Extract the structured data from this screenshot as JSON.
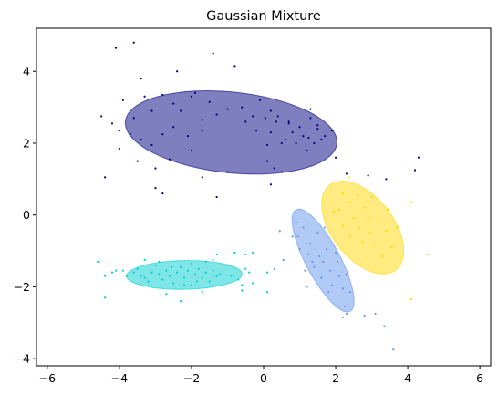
{
  "chart_data": {
    "type": "scatter",
    "title": "Gaussian Mixture",
    "xlabel": "",
    "ylabel": "",
    "xlim": [
      -6.3,
      6.3
    ],
    "ylim": [
      -4.2,
      5.2
    ],
    "xticks": [
      -6,
      -4,
      -2,
      0,
      2,
      4,
      6
    ],
    "yticks": [
      -4,
      -2,
      0,
      2,
      4
    ],
    "grid": false,
    "series": [
      {
        "color": "#000080",
        "ellipse": {
          "center": [
            -0.9,
            2.3
          ],
          "width": 5.9,
          "height": 2.25,
          "angle_deg": -6,
          "alpha": 0.5
        },
        "points": [
          [
            -4.1,
            4.65
          ],
          [
            -3.6,
            4.8
          ],
          [
            -1.4,
            4.5
          ],
          [
            -0.8,
            4.15
          ],
          [
            -3.4,
            3.8
          ],
          [
            -2.4,
            4.0
          ],
          [
            -3.9,
            3.2
          ],
          [
            -3.1,
            2.9
          ],
          [
            -3.3,
            3.3
          ],
          [
            -2.8,
            3.35
          ],
          [
            -2.5,
            3.1
          ],
          [
            -2.0,
            3.3
          ],
          [
            -1.9,
            3.4
          ],
          [
            -1.5,
            3.15
          ],
          [
            -1.3,
            2.8
          ],
          [
            -1.0,
            2.95
          ],
          [
            -0.6,
            3.0
          ],
          [
            -0.3,
            2.75
          ],
          [
            -4.5,
            2.75
          ],
          [
            -4.2,
            2.55
          ],
          [
            -4.0,
            2.35
          ],
          [
            -3.7,
            2.25
          ],
          [
            -3.4,
            2.1
          ],
          [
            -3.1,
            1.95
          ],
          [
            -2.8,
            2.25
          ],
          [
            -2.5,
            2.45
          ],
          [
            -2.1,
            2.2
          ],
          [
            -1.7,
            2.35
          ],
          [
            -4.0,
            1.85
          ],
          [
            -3.5,
            1.5
          ],
          [
            -3.0,
            1.3
          ],
          [
            -2.6,
            1.55
          ],
          [
            -1.7,
            1.05
          ],
          [
            -4.4,
            1.05
          ],
          [
            -3.0,
            0.75
          ],
          [
            -2.8,
            0.6
          ],
          [
            -1.3,
            0.5
          ],
          [
            -1.0,
            1.2
          ],
          [
            -0.1,
            3.2
          ],
          [
            0.2,
            2.9
          ],
          [
            0.4,
            2.75
          ],
          [
            0.7,
            2.6
          ],
          [
            1.0,
            2.45
          ],
          [
            1.3,
            2.7
          ],
          [
            1.5,
            2.5
          ],
          [
            1.7,
            2.2
          ],
          [
            1.4,
            2.0
          ],
          [
            1.1,
            2.2
          ],
          [
            0.8,
            2.3
          ],
          [
            0.5,
            2.0
          ],
          [
            0.2,
            2.3
          ],
          [
            0.1,
            1.95
          ],
          [
            0.6,
            2.1
          ],
          [
            0.9,
            2.0
          ],
          [
            1.2,
            1.8
          ],
          [
            1.6,
            2.1
          ],
          [
            1.9,
            2.35
          ],
          [
            0.3,
            1.3
          ],
          [
            0.1,
            1.5
          ],
          [
            0.5,
            1.2
          ],
          [
            0.2,
            0.85
          ],
          [
            2.0,
            1.6
          ],
          [
            0.7,
            2.55
          ],
          [
            1.5,
            2.4
          ],
          [
            -2.3,
            2.9
          ],
          [
            -0.5,
            2.6
          ],
          [
            -2.0,
            1.8
          ],
          [
            -3.6,
            2.7
          ],
          [
            1.25,
            2.15
          ],
          [
            0.35,
            2.6
          ],
          [
            0.05,
            2.7
          ],
          [
            -0.2,
            2.35
          ],
          [
            4.3,
            1.6
          ],
          [
            4.2,
            1.25
          ],
          [
            3.4,
            1.0
          ],
          [
            2.9,
            1.1
          ],
          [
            2.3,
            1.15
          ],
          [
            1.3,
            2.95
          ],
          [
            -1.7,
            2.65
          ]
        ]
      },
      {
        "color": "#00CED1",
        "ellipse": {
          "center": [
            -2.2,
            -1.67
          ],
          "width": 3.2,
          "height": 0.8,
          "angle_deg": 1,
          "alpha": 0.5
        },
        "points": [
          [
            -4.6,
            -1.3
          ],
          [
            -4.4,
            -1.7
          ],
          [
            -4.4,
            -2.3
          ],
          [
            -4.2,
            -1.6
          ],
          [
            -4.1,
            -1.55
          ],
          [
            -3.9,
            -1.55
          ],
          [
            -3.8,
            -1.7
          ],
          [
            -3.6,
            -1.6
          ],
          [
            -3.5,
            -1.5
          ],
          [
            -3.3,
            -1.75
          ],
          [
            -3.2,
            -1.85
          ],
          [
            -3.1,
            -1.6
          ],
          [
            -3.0,
            -1.4
          ],
          [
            -2.9,
            -1.65
          ],
          [
            -2.8,
            -1.8
          ],
          [
            -2.7,
            -1.55
          ],
          [
            -2.6,
            -1.7
          ],
          [
            -2.5,
            -1.9
          ],
          [
            -2.4,
            -1.6
          ],
          [
            -2.3,
            -1.45
          ],
          [
            -2.2,
            -1.75
          ],
          [
            -2.1,
            -1.55
          ],
          [
            -2.0,
            -1.95
          ],
          [
            -1.9,
            -1.65
          ],
          [
            -1.8,
            -1.5
          ],
          [
            -1.7,
            -1.75
          ],
          [
            -1.6,
            -1.6
          ],
          [
            -1.5,
            -1.85
          ],
          [
            -1.4,
            -1.55
          ],
          [
            -1.3,
            -1.7
          ],
          [
            -1.2,
            -1.65
          ],
          [
            -1.0,
            -1.4
          ],
          [
            -0.9,
            -1.7
          ],
          [
            -0.7,
            -1.8
          ],
          [
            -0.5,
            -1.5
          ],
          [
            -0.6,
            -1.95
          ],
          [
            -0.4,
            -1.6
          ],
          [
            -0.3,
            -1.9
          ],
          [
            -0.6,
            -2.1
          ],
          [
            -2.3,
            -2.4
          ],
          [
            -1.7,
            -2.15
          ],
          [
            -2.7,
            -2.2
          ],
          [
            -2.9,
            -1.3
          ],
          [
            -1.4,
            -1.25
          ],
          [
            -0.8,
            -1.05
          ],
          [
            -0.5,
            -1.1
          ],
          [
            -0.3,
            -1.05
          ],
          [
            -1.3,
            -1.1
          ],
          [
            0.1,
            -1.6
          ],
          [
            0.1,
            -2.15
          ],
          [
            -3.3,
            -1.25
          ],
          [
            -1.6,
            -1.3
          ],
          [
            -2.0,
            -1.35
          ],
          [
            -2.2,
            -1.95
          ],
          [
            -1.85,
            -1.85
          ],
          [
            -2.55,
            -1.45
          ],
          [
            -3.4,
            -1.7
          ]
        ]
      },
      {
        "color": "#6495ED",
        "ellipse": {
          "center": [
            1.65,
            -1.27
          ],
          "width": 0.95,
          "height": 3.2,
          "angle_deg": 28,
          "alpha": 0.5
        },
        "points": [
          [
            0.45,
            -0.45
          ],
          [
            0.9,
            -0.2
          ],
          [
            0.8,
            -0.6
          ],
          [
            1.1,
            -0.35
          ],
          [
            1.3,
            -0.8
          ],
          [
            1.5,
            -0.5
          ],
          [
            1.0,
            -0.95
          ],
          [
            1.25,
            -1.1
          ],
          [
            1.55,
            -1.15
          ],
          [
            1.75,
            -0.95
          ],
          [
            1.65,
            -1.3
          ],
          [
            1.85,
            -1.55
          ],
          [
            2.05,
            -1.3
          ],
          [
            1.4,
            -1.45
          ],
          [
            1.6,
            -1.75
          ],
          [
            1.9,
            -1.95
          ],
          [
            2.1,
            -1.7
          ],
          [
            2.3,
            -1.65
          ],
          [
            2.2,
            -2.05
          ],
          [
            2.4,
            -2.15
          ],
          [
            1.2,
            -2.0
          ],
          [
            2.25,
            -2.55
          ],
          [
            2.3,
            -2.75
          ],
          [
            2.2,
            -2.85
          ],
          [
            2.8,
            -2.8
          ],
          [
            3.1,
            -2.75
          ],
          [
            3.35,
            -3.1
          ],
          [
            3.6,
            -3.75
          ],
          [
            1.8,
            -2.15
          ],
          [
            1.35,
            -1.3
          ],
          [
            0.55,
            -1.25
          ],
          [
            0.3,
            -1.5
          ],
          [
            0.95,
            -0.6
          ],
          [
            1.7,
            -0.35
          ],
          [
            2.0,
            -1.05
          ],
          [
            1.15,
            -1.55
          ]
        ]
      },
      {
        "color": "#FFD700",
        "ellipse": {
          "center": [
            2.75,
            -0.35
          ],
          "width": 1.7,
          "height": 3.0,
          "angle_deg": 38,
          "alpha": 0.5
        },
        "points": [
          [
            2.2,
            0.6
          ],
          [
            2.4,
            0.35
          ],
          [
            2.1,
            0.15
          ],
          [
            2.5,
            -0.1
          ],
          [
            2.8,
            0.2
          ],
          [
            2.65,
            -0.35
          ],
          [
            2.95,
            -0.5
          ],
          [
            3.2,
            -0.15
          ],
          [
            3.4,
            -0.45
          ],
          [
            3.1,
            -0.8
          ],
          [
            2.4,
            -0.6
          ],
          [
            2.2,
            -0.3
          ],
          [
            3.0,
            0.5
          ],
          [
            3.45,
            0.15
          ],
          [
            2.75,
            -0.75
          ],
          [
            3.55,
            -0.9
          ],
          [
            3.3,
            -1.15
          ],
          [
            2.6,
            0.55
          ],
          [
            4.1,
            0.35
          ],
          [
            4.55,
            -1.1
          ],
          [
            4.1,
            -2.35
          ],
          [
            2.35,
            1.05
          ],
          [
            1.95,
            0.1
          ],
          [
            3.7,
            -0.35
          ],
          [
            2.9,
            -0.05
          ]
        ]
      }
    ]
  }
}
